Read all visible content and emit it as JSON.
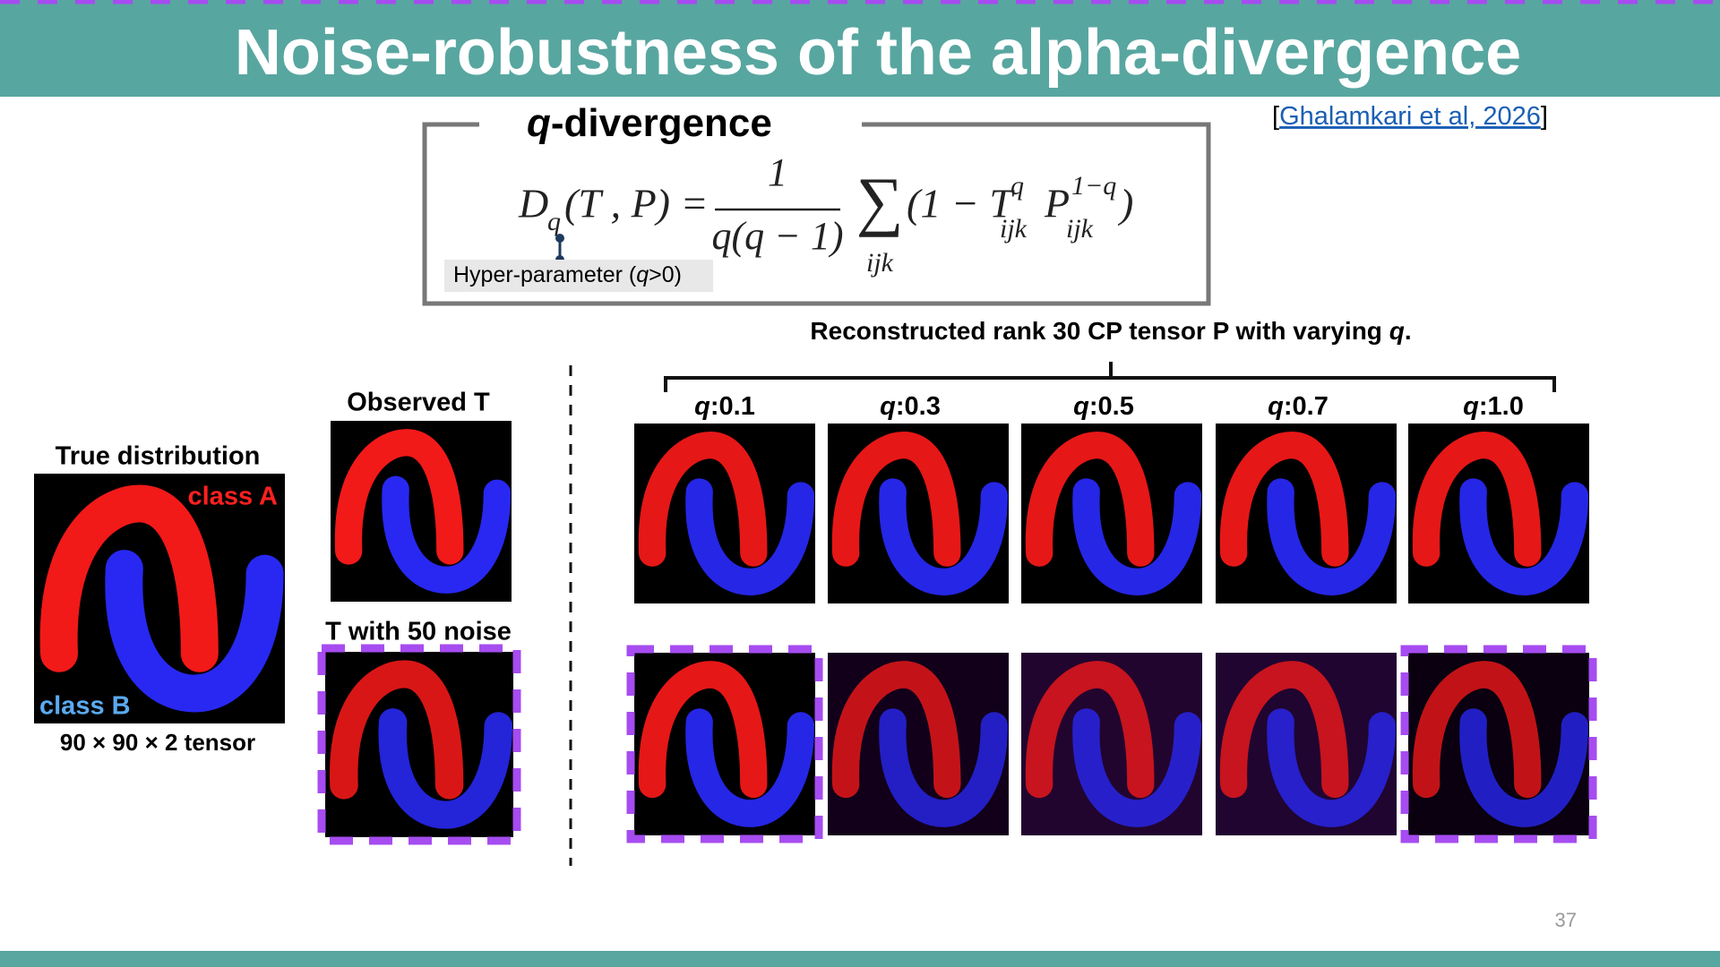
{
  "header": {
    "title": "Noise-robustness of the alpha-divergence"
  },
  "citation": {
    "open": "[",
    "link": "Ghalamkari et al, 2026",
    "close": "]"
  },
  "formula_box": {
    "title_q": "q",
    "title_rest": "-divergence",
    "formula": [
      "D",
      "q",
      "(T , P) =",
      "1",
      "q(q − 1)",
      "∑",
      "ijk",
      "(1 − T",
      "q",
      "ijk",
      "P",
      "1−q",
      "ijk",
      ")"
    ],
    "hyper": [
      "Hyper-parameter (",
      "q",
      ">0)"
    ]
  },
  "reconstructed": {
    "text": "Reconstructed rank 30 CP tensor P with varying ",
    "q": "q",
    "end": "."
  },
  "q_labels": [
    {
      "q": "q",
      "v": ":0.1"
    },
    {
      "q": "q",
      "v": ":0.3"
    },
    {
      "q": "q",
      "v": ":0.5"
    },
    {
      "q": "q",
      "v": ":0.7"
    },
    {
      "q": "q",
      "v": ":1.0"
    }
  ],
  "left": {
    "true_title": "True distribution",
    "class_a": "class A",
    "class_b": "class B",
    "tensor": "90 × 90 × 2 tensor",
    "observed": "Observed T",
    "noise": "T with 50 noise"
  },
  "page_number": "37"
}
